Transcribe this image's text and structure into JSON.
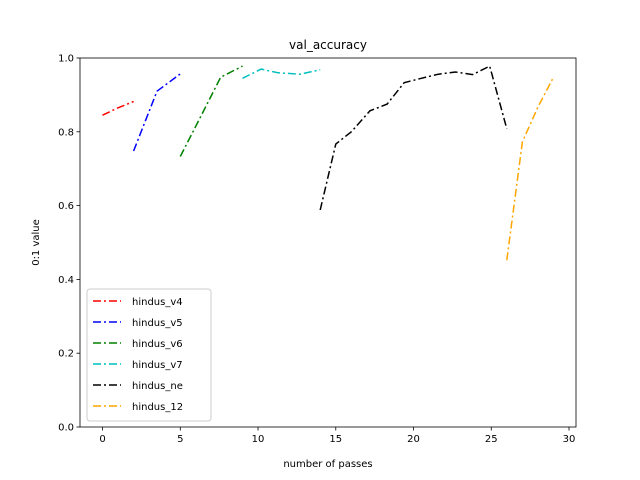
{
  "chart_data": {
    "type": "line",
    "title": "val_accuracy",
    "xlabel": "number of passes",
    "ylabel": "0:1 value",
    "xlim": [
      -1.45,
      30.45
    ],
    "ylim": [
      0.0,
      1.0
    ],
    "xticks": [
      0,
      5,
      10,
      15,
      20,
      25,
      30
    ],
    "yticks": [
      0.0,
      0.2,
      0.4,
      0.6,
      0.8,
      1.0
    ],
    "xtick_labels": [
      "0",
      "5",
      "10",
      "15",
      "20",
      "25",
      "30"
    ],
    "ytick_labels": [
      "0.0",
      "0.2",
      "0.4",
      "0.6",
      "0.8",
      "1.0"
    ],
    "grid": false,
    "legend_position": "lower-left",
    "line_style": "dash-dot",
    "series": [
      {
        "name": "hindus_v4",
        "color": "#ff0000",
        "x": [
          0,
          1,
          2
        ],
        "y": [
          0.845,
          0.865,
          0.882
        ]
      },
      {
        "name": "hindus_v5",
        "color": "#0000ff",
        "x": [
          2,
          3.5,
          5
        ],
        "y": [
          0.748,
          0.91,
          0.957
        ]
      },
      {
        "name": "hindus_v6",
        "color": "#008000",
        "x": [
          5,
          6.3,
          7.6,
          9
        ],
        "y": [
          0.733,
          0.84,
          0.948,
          0.978
        ]
      },
      {
        "name": "hindus_v7",
        "color": "#00bfbf",
        "x": [
          9,
          10.2,
          11.3,
          12.7,
          14
        ],
        "y": [
          0.945,
          0.97,
          0.96,
          0.956,
          0.968
        ]
      },
      {
        "name": "hindus_ne",
        "color": "#000000",
        "x": [
          14,
          15,
          16,
          17.2,
          18.3,
          19.4,
          20.5,
          21.6,
          22.7,
          23.8,
          24.9,
          26
        ],
        "y": [
          0.588,
          0.767,
          0.8,
          0.857,
          0.875,
          0.933,
          0.945,
          0.956,
          0.962,
          0.955,
          0.978,
          0.808
        ]
      },
      {
        "name": "hindus_12",
        "color": "#ffa500",
        "x": [
          26,
          27,
          28,
          29
        ],
        "y": [
          0.452,
          0.773,
          0.867,
          0.948
        ]
      }
    ]
  }
}
